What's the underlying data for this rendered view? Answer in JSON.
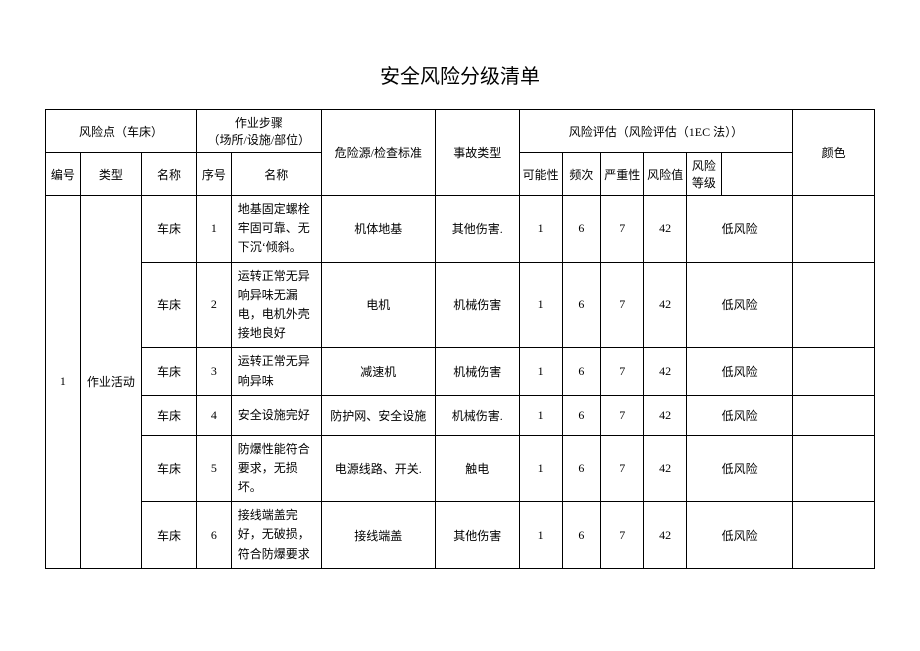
{
  "title": "安全风险分级清单",
  "table": {
    "header": {
      "risk_point": "风险点（车床）",
      "step": "作业步骤",
      "step_sub": "（场所/设施/部位）",
      "hazard": "危险源/检查标准",
      "accident": "事故类型",
      "assessment": "风险评估（风险评估（1EC 法））",
      "id": "编号",
      "type": "类型",
      "name": "名称",
      "seq": "序号",
      "step_name": "名称",
      "poss": "可能性",
      "freq": "频次",
      "sev": "严重性",
      "val": "风险值",
      "level": "风险等级",
      "color": "颜色"
    },
    "group": {
      "id": "1",
      "type": "作业活动"
    },
    "rows": [
      {
        "name": "车床",
        "seq": "1",
        "step_name": "地基固定螺栓牢固可靠、无下沉‘倾斜。",
        "hazard": "机体地基",
        "accident": "其他伤害.",
        "poss": "1",
        "freq": "6",
        "sev": "7",
        "val": "42",
        "level_text": "低风险"
      },
      {
        "name": "车床",
        "seq": "2",
        "step_name": "运转正常无异响异味无漏电，电机外壳接地良好",
        "hazard": "电机",
        "accident": "机械伤害",
        "poss": "1",
        "freq": "6",
        "sev": "7",
        "val": "42",
        "level_text": "低风险"
      },
      {
        "name": "车床",
        "seq": "3",
        "step_name": "运转正常无异响异味",
        "hazard": "减速机",
        "accident": "机械伤害",
        "poss": "1",
        "freq": "6",
        "sev": "7",
        "val": "42",
        "level_text": "低风险"
      },
      {
        "name": "车床",
        "seq": "4",
        "step_name": "安全设施完好",
        "hazard": "防护网、安全设施",
        "accident": "机械伤害.",
        "poss": "1",
        "freq": "6",
        "sev": "7",
        "val": "42",
        "level_text": "低风险"
      },
      {
        "name": "车床",
        "seq": "5",
        "step_name": "防爆性能符合要求，无损坏。",
        "hazard": "电源线路、开关.",
        "accident": "触电",
        "poss": "1",
        "freq": "6",
        "sev": "7",
        "val": "42",
        "level_text": "低风险"
      },
      {
        "name": "车床",
        "seq": "6",
        "step_name": "接线端盖完好，无破损，符合防爆要求",
        "hazard": "接线端盖",
        "accident": "其他伤害",
        "poss": "1",
        "freq": "6",
        "sev": "7",
        "val": "42",
        "level_text": "低风险"
      }
    ]
  }
}
